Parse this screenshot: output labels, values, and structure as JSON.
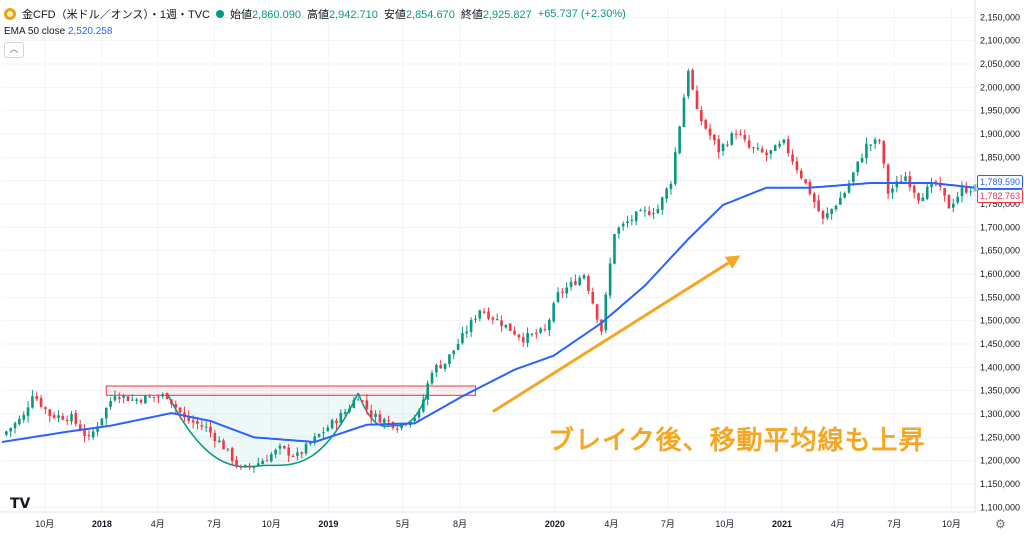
{
  "header": {
    "symbol_title": "金CFD（米ドル／オンス）・1週・TVC",
    "ohlc": [
      {
        "label": "始値",
        "value": "2,860.090"
      },
      {
        "label": "高値",
        "value": "2,942.710"
      },
      {
        "label": "安値",
        "value": "2,854.670"
      },
      {
        "label": "終値",
        "value": "2,925.827"
      }
    ],
    "change": "+65.737 (+2.30%)",
    "ema_label": "EMA 50 close",
    "ema_value": "2,520.258",
    "collapse_glyph": "︿"
  },
  "price_tags": {
    "ema": "1,789.590",
    "close": "1,782.763"
  },
  "annotation": "ブレイク後、移動平均線も上昇",
  "logo_text": "TV",
  "colors": {
    "up": "#089981",
    "down": "#f23645",
    "ema": "#2962ff",
    "arrow": "#f5a623",
    "rect": "#f23645",
    "cup": "#089981"
  },
  "icons": [
    "gold-icon",
    "live-dot-icon",
    "tradingview-logo-icon",
    "settings-gear-icon",
    "trend-arrow-icon"
  ],
  "chart_data": {
    "type": "candlestick",
    "y_ticks": [
      "2,150,000",
      "2,100,000",
      "2,050,000",
      "2,000,000",
      "1,950,000",
      "1,900,000",
      "1,850,000",
      "1,800,000",
      "1,750,000",
      "1,700,000",
      "1,650,000",
      "1,600,000",
      "1,550,000",
      "1,500,000",
      "1,450,000",
      "1,400,000",
      "1,350,000",
      "1,300,000",
      "1,250,000",
      "1,200,000",
      "1,150,000",
      "1,100,000"
    ],
    "y_tick_values": [
      2150,
      2100,
      2050,
      2000,
      1950,
      1900,
      1850,
      1800,
      1750,
      1700,
      1650,
      1600,
      1550,
      1500,
      1450,
      1400,
      1350,
      1300,
      1250,
      1200,
      1150,
      1100
    ],
    "ylim": [
      1090,
      2170
    ],
    "x_ticks": [
      {
        "label": "10月",
        "date": "2017-10-01"
      },
      {
        "label": "2018",
        "date": "2018-01-01"
      },
      {
        "label": "4月",
        "date": "2018-04-01"
      },
      {
        "label": "7月",
        "date": "2018-07-01"
      },
      {
        "label": "10月",
        "date": "2018-10-01"
      },
      {
        "label": "2019",
        "date": "2019-01-01"
      },
      {
        "label": "5月",
        "date": "2019-05-01"
      },
      {
        "label": "8月",
        "date": "2019-08-01"
      },
      {
        "label": "2020",
        "date": "2020-01-01"
      },
      {
        "label": "4月",
        "date": "2020-04-01"
      },
      {
        "label": "7月",
        "date": "2020-07-01"
      },
      {
        "label": "10月",
        "date": "2020-10-01"
      },
      {
        "label": "2021",
        "date": "2021-01-01"
      },
      {
        "label": "4月",
        "date": "2021-04-01"
      },
      {
        "label": "7月",
        "date": "2021-07-01"
      },
      {
        "label": "10月",
        "date": "2021-10-01"
      }
    ],
    "xlim": [
      "2017-07-24",
      "2021-11-08"
    ],
    "close_keyframes": [
      [
        "2017-07-24",
        1255
      ],
      [
        "2017-08-28",
        1295
      ],
      [
        "2017-09-11",
        1345
      ],
      [
        "2017-10-09",
        1298
      ],
      [
        "2017-11-13",
        1292
      ],
      [
        "2017-12-11",
        1245
      ],
      [
        "2018-01-22",
        1345
      ],
      [
        "2018-02-19",
        1330
      ],
      [
        "2018-04-16",
        1340
      ],
      [
        "2018-05-14",
        1290
      ],
      [
        "2018-06-18",
        1270
      ],
      [
        "2018-07-16",
        1230
      ],
      [
        "2018-08-13",
        1180
      ],
      [
        "2018-09-10",
        1195
      ],
      [
        "2018-10-15",
        1225
      ],
      [
        "2018-11-12",
        1210
      ],
      [
        "2018-12-17",
        1255
      ],
      [
        "2019-01-28",
        1305
      ],
      [
        "2019-02-18",
        1340
      ],
      [
        "2019-03-11",
        1298
      ],
      [
        "2019-04-22",
        1275
      ],
      [
        "2019-05-27",
        1300
      ],
      [
        "2019-06-17",
        1395
      ],
      [
        "2019-07-08",
        1410
      ],
      [
        "2019-08-05",
        1465
      ],
      [
        "2019-09-02",
        1525
      ],
      [
        "2019-10-07",
        1495
      ],
      [
        "2019-11-11",
        1462
      ],
      [
        "2019-12-16",
        1478
      ],
      [
        "2020-01-06",
        1555
      ],
      [
        "2020-02-17",
        1600
      ],
      [
        "2020-03-16",
        1480
      ],
      [
        "2020-04-06",
        1690
      ],
      [
        "2020-05-11",
        1725
      ],
      [
        "2020-06-15",
        1740
      ],
      [
        "2020-07-06",
        1800
      ],
      [
        "2020-08-03",
        2040
      ],
      [
        "2020-08-17",
        1945
      ],
      [
        "2020-09-21",
        1865
      ],
      [
        "2020-10-19",
        1905
      ],
      [
        "2020-11-09",
        1870
      ],
      [
        "2020-12-07",
        1855
      ],
      [
        "2021-01-04",
        1880
      ],
      [
        "2021-02-15",
        1775
      ],
      [
        "2021-03-08",
        1715
      ],
      [
        "2021-04-12",
        1775
      ],
      [
        "2021-05-17",
        1875
      ],
      [
        "2021-06-07",
        1885
      ],
      [
        "2021-06-21",
        1775
      ],
      [
        "2021-07-19",
        1810
      ],
      [
        "2021-08-09",
        1765
      ],
      [
        "2021-09-06",
        1795
      ],
      [
        "2021-09-27",
        1745
      ],
      [
        "2021-10-18",
        1780
      ],
      [
        "2021-11-08",
        1785
      ]
    ],
    "ema_keyframes": [
      [
        "2017-07-24",
        1240
      ],
      [
        "2017-11-06",
        1262
      ],
      [
        "2018-01-15",
        1275
      ],
      [
        "2018-04-23",
        1302
      ],
      [
        "2018-06-25",
        1285
      ],
      [
        "2018-09-03",
        1250
      ],
      [
        "2018-12-10",
        1240
      ],
      [
        "2019-03-04",
        1277
      ],
      [
        "2019-05-20",
        1280
      ],
      [
        "2019-08-05",
        1338
      ],
      [
        "2019-10-28",
        1395
      ],
      [
        "2019-12-30",
        1425
      ],
      [
        "2020-03-16",
        1495
      ],
      [
        "2020-05-25",
        1575
      ],
      [
        "2020-08-03",
        1675
      ],
      [
        "2020-09-28",
        1748
      ],
      [
        "2020-12-07",
        1785
      ],
      [
        "2021-02-15",
        1785
      ],
      [
        "2021-05-24",
        1795
      ],
      [
        "2021-08-30",
        1795
      ],
      [
        "2021-11-08",
        1785
      ]
    ],
    "resistance_box": {
      "x_start": "2018-01-08",
      "x_end": "2019-08-26",
      "y_low": 1340,
      "y_high": 1360
    },
    "cup_left": {
      "x_start": "2018-04-16",
      "x_bottom": "2018-09-24",
      "x_end": "2019-02-18",
      "y_rim": 1345,
      "y_bottom": 1190
    },
    "cup_right": {
      "x_start": "2019-02-18",
      "x_bottom": "2019-04-15",
      "x_end": "2019-06-10",
      "y_rim": 1345,
      "y_bottom": 1275
    },
    "trend_arrow": {
      "x_start": "2019-09-23",
      "y_start": 1305,
      "x_end": "2020-10-26",
      "y_end": 1640
    }
  }
}
